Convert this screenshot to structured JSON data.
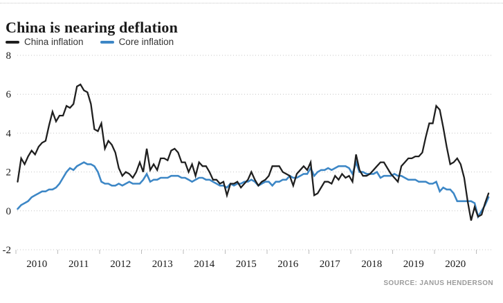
{
  "page": {
    "title": "China is nearing deflation",
    "source": "SOURCE: JANUS HENDERSON"
  },
  "legend": [
    {
      "label": "China inflation",
      "color": "#1f1f1f"
    },
    {
      "label": "Core inflation",
      "color": "#3d87c6"
    }
  ],
  "chart_data": {
    "type": "line",
    "title": "China is nearing deflation",
    "x_unit": "month",
    "x_start": "2010-01",
    "x_end": "2021-04",
    "x_tick_labels": [
      "2010",
      "2011",
      "2012",
      "2013",
      "2014",
      "2015",
      "2016",
      "2017",
      "2018",
      "2019",
      "2020"
    ],
    "ylim": [
      -2,
      8
    ],
    "y_ticks": [
      8,
      6,
      4,
      2,
      0,
      -2
    ],
    "grid": "horizontal-dotted",
    "legend_position": "top-left",
    "series": [
      {
        "name": "China inflation",
        "color": "#1f1f1f",
        "values": [
          1.5,
          2.7,
          2.4,
          2.8,
          3.1,
          2.9,
          3.3,
          3.5,
          3.6,
          4.4,
          5.1,
          4.6,
          4.9,
          4.9,
          5.4,
          5.3,
          5.5,
          6.4,
          6.5,
          6.2,
          6.1,
          5.5,
          4.2,
          4.1,
          4.5,
          3.2,
          3.6,
          3.4,
          3.0,
          2.2,
          1.8,
          2.0,
          1.9,
          1.7,
          2.0,
          2.5,
          2.0,
          3.2,
          2.1,
          2.4,
          2.1,
          2.7,
          2.7,
          2.6,
          3.1,
          3.2,
          3.0,
          2.5,
          2.5,
          2.0,
          2.4,
          1.8,
          2.5,
          2.3,
          2.3,
          2.0,
          1.6,
          1.6,
          1.4,
          1.5,
          0.8,
          1.4,
          1.4,
          1.5,
          1.2,
          1.4,
          1.6,
          2.0,
          1.6,
          1.3,
          1.5,
          1.6,
          1.8,
          2.3,
          2.3,
          2.3,
          2.0,
          1.9,
          1.8,
          1.3,
          1.9,
          2.1,
          2.3,
          2.1,
          2.5,
          0.8,
          0.9,
          1.2,
          1.5,
          1.5,
          1.4,
          1.8,
          1.6,
          1.9,
          1.7,
          1.8,
          1.5,
          2.9,
          2.1,
          1.8,
          1.8,
          1.9,
          2.1,
          2.3,
          2.5,
          2.5,
          2.2,
          1.9,
          1.7,
          1.5,
          2.3,
          2.5,
          2.7,
          2.7,
          2.8,
          2.8,
          3.0,
          3.8,
          4.5,
          4.5,
          5.4,
          5.2,
          4.3,
          3.3,
          2.4,
          2.5,
          2.7,
          2.4,
          1.7,
          0.5,
          -0.5,
          0.2,
          -0.3,
          -0.2,
          0.4,
          0.9
        ]
      },
      {
        "name": "Core inflation",
        "color": "#3d87c6",
        "values": [
          0.1,
          0.3,
          0.4,
          0.5,
          0.7,
          0.8,
          0.9,
          1.0,
          1.0,
          1.1,
          1.1,
          1.2,
          1.4,
          1.7,
          2.0,
          2.2,
          2.1,
          2.3,
          2.4,
          2.5,
          2.4,
          2.4,
          2.3,
          2.0,
          1.5,
          1.4,
          1.4,
          1.3,
          1.3,
          1.4,
          1.3,
          1.4,
          1.5,
          1.4,
          1.4,
          1.4,
          1.6,
          1.9,
          1.5,
          1.6,
          1.6,
          1.7,
          1.7,
          1.7,
          1.8,
          1.8,
          1.8,
          1.7,
          1.7,
          1.6,
          1.5,
          1.6,
          1.7,
          1.7,
          1.6,
          1.6,
          1.5,
          1.4,
          1.3,
          1.3,
          1.2,
          1.4,
          1.3,
          1.4,
          1.4,
          1.5,
          1.5,
          1.6,
          1.5,
          1.3,
          1.4,
          1.5,
          1.5,
          1.3,
          1.5,
          1.5,
          1.6,
          1.6,
          1.8,
          1.7,
          1.7,
          1.8,
          1.9,
          1.9,
          2.2,
          1.8,
          2.0,
          2.1,
          2.1,
          2.2,
          2.1,
          2.2,
          2.3,
          2.3,
          2.3,
          2.2,
          1.9,
          2.5,
          2.0,
          2.0,
          1.9,
          1.9,
          1.9,
          2.0,
          1.7,
          1.8,
          1.8,
          1.8,
          1.9,
          1.8,
          1.8,
          1.7,
          1.6,
          1.6,
          1.6,
          1.5,
          1.5,
          1.5,
          1.4,
          1.4,
          1.5,
          1.0,
          1.2,
          1.1,
          1.1,
          0.9,
          0.5,
          0.5,
          0.5,
          0.5,
          0.5,
          0.4,
          -0.3,
          0.0,
          0.3,
          0.7
        ]
      }
    ]
  }
}
